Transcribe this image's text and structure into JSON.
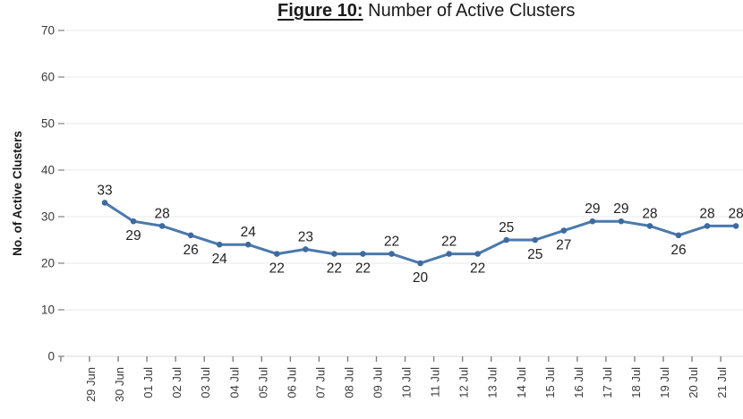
{
  "title": {
    "prefix": "Figure 10:",
    "rest": " Number of Active Clusters"
  },
  "chart_data": {
    "type": "line",
    "title": "Figure 10: Number of Active Clusters",
    "xlabel": "",
    "ylabel": "No. of Active Clusters",
    "ylim": [
      0,
      70
    ],
    "ytick_interval": 10,
    "grid": true,
    "legend": false,
    "data_labels": true,
    "categories": [
      "29 Jun",
      "30 Jun",
      "01 Jul",
      "02 Jul",
      "03 Jul",
      "04 Jul",
      "05 Jul",
      "06 Jul",
      "07 Jul",
      "08 Jul",
      "09 Jul",
      "10 Jul",
      "11 Jul",
      "12 Jul",
      "13 Jul",
      "14 Jul",
      "15 Jul",
      "16 Jul",
      "17 Jul",
      "18 Jul",
      "19 Jul",
      "20 Jul",
      "21 Jul"
    ],
    "series": [
      {
        "name": "No. of Active Clusters",
        "values": [
          33,
          29,
          28,
          26,
          24,
          24,
          22,
          23,
          22,
          22,
          22,
          20,
          22,
          22,
          25,
          25,
          27,
          29,
          29,
          28,
          26,
          28,
          28
        ],
        "label_positions": [
          "above",
          "below",
          "above",
          "below",
          "below",
          "above",
          "below",
          "above",
          "below",
          "below",
          "above",
          "below",
          "above",
          "below",
          "above",
          "below",
          "below",
          "above",
          "above",
          "above",
          "below",
          "above",
          "above"
        ]
      }
    ]
  },
  "colors": {
    "line": "#4a79ad",
    "marker": "#3d6b9e",
    "grid": "#eaeaea",
    "zero_line": "#d8d8d8",
    "tick": "#808080",
    "axis_text": "#3a3a3a",
    "data_label": "#212121",
    "title_text": "#1a1a1a"
  }
}
